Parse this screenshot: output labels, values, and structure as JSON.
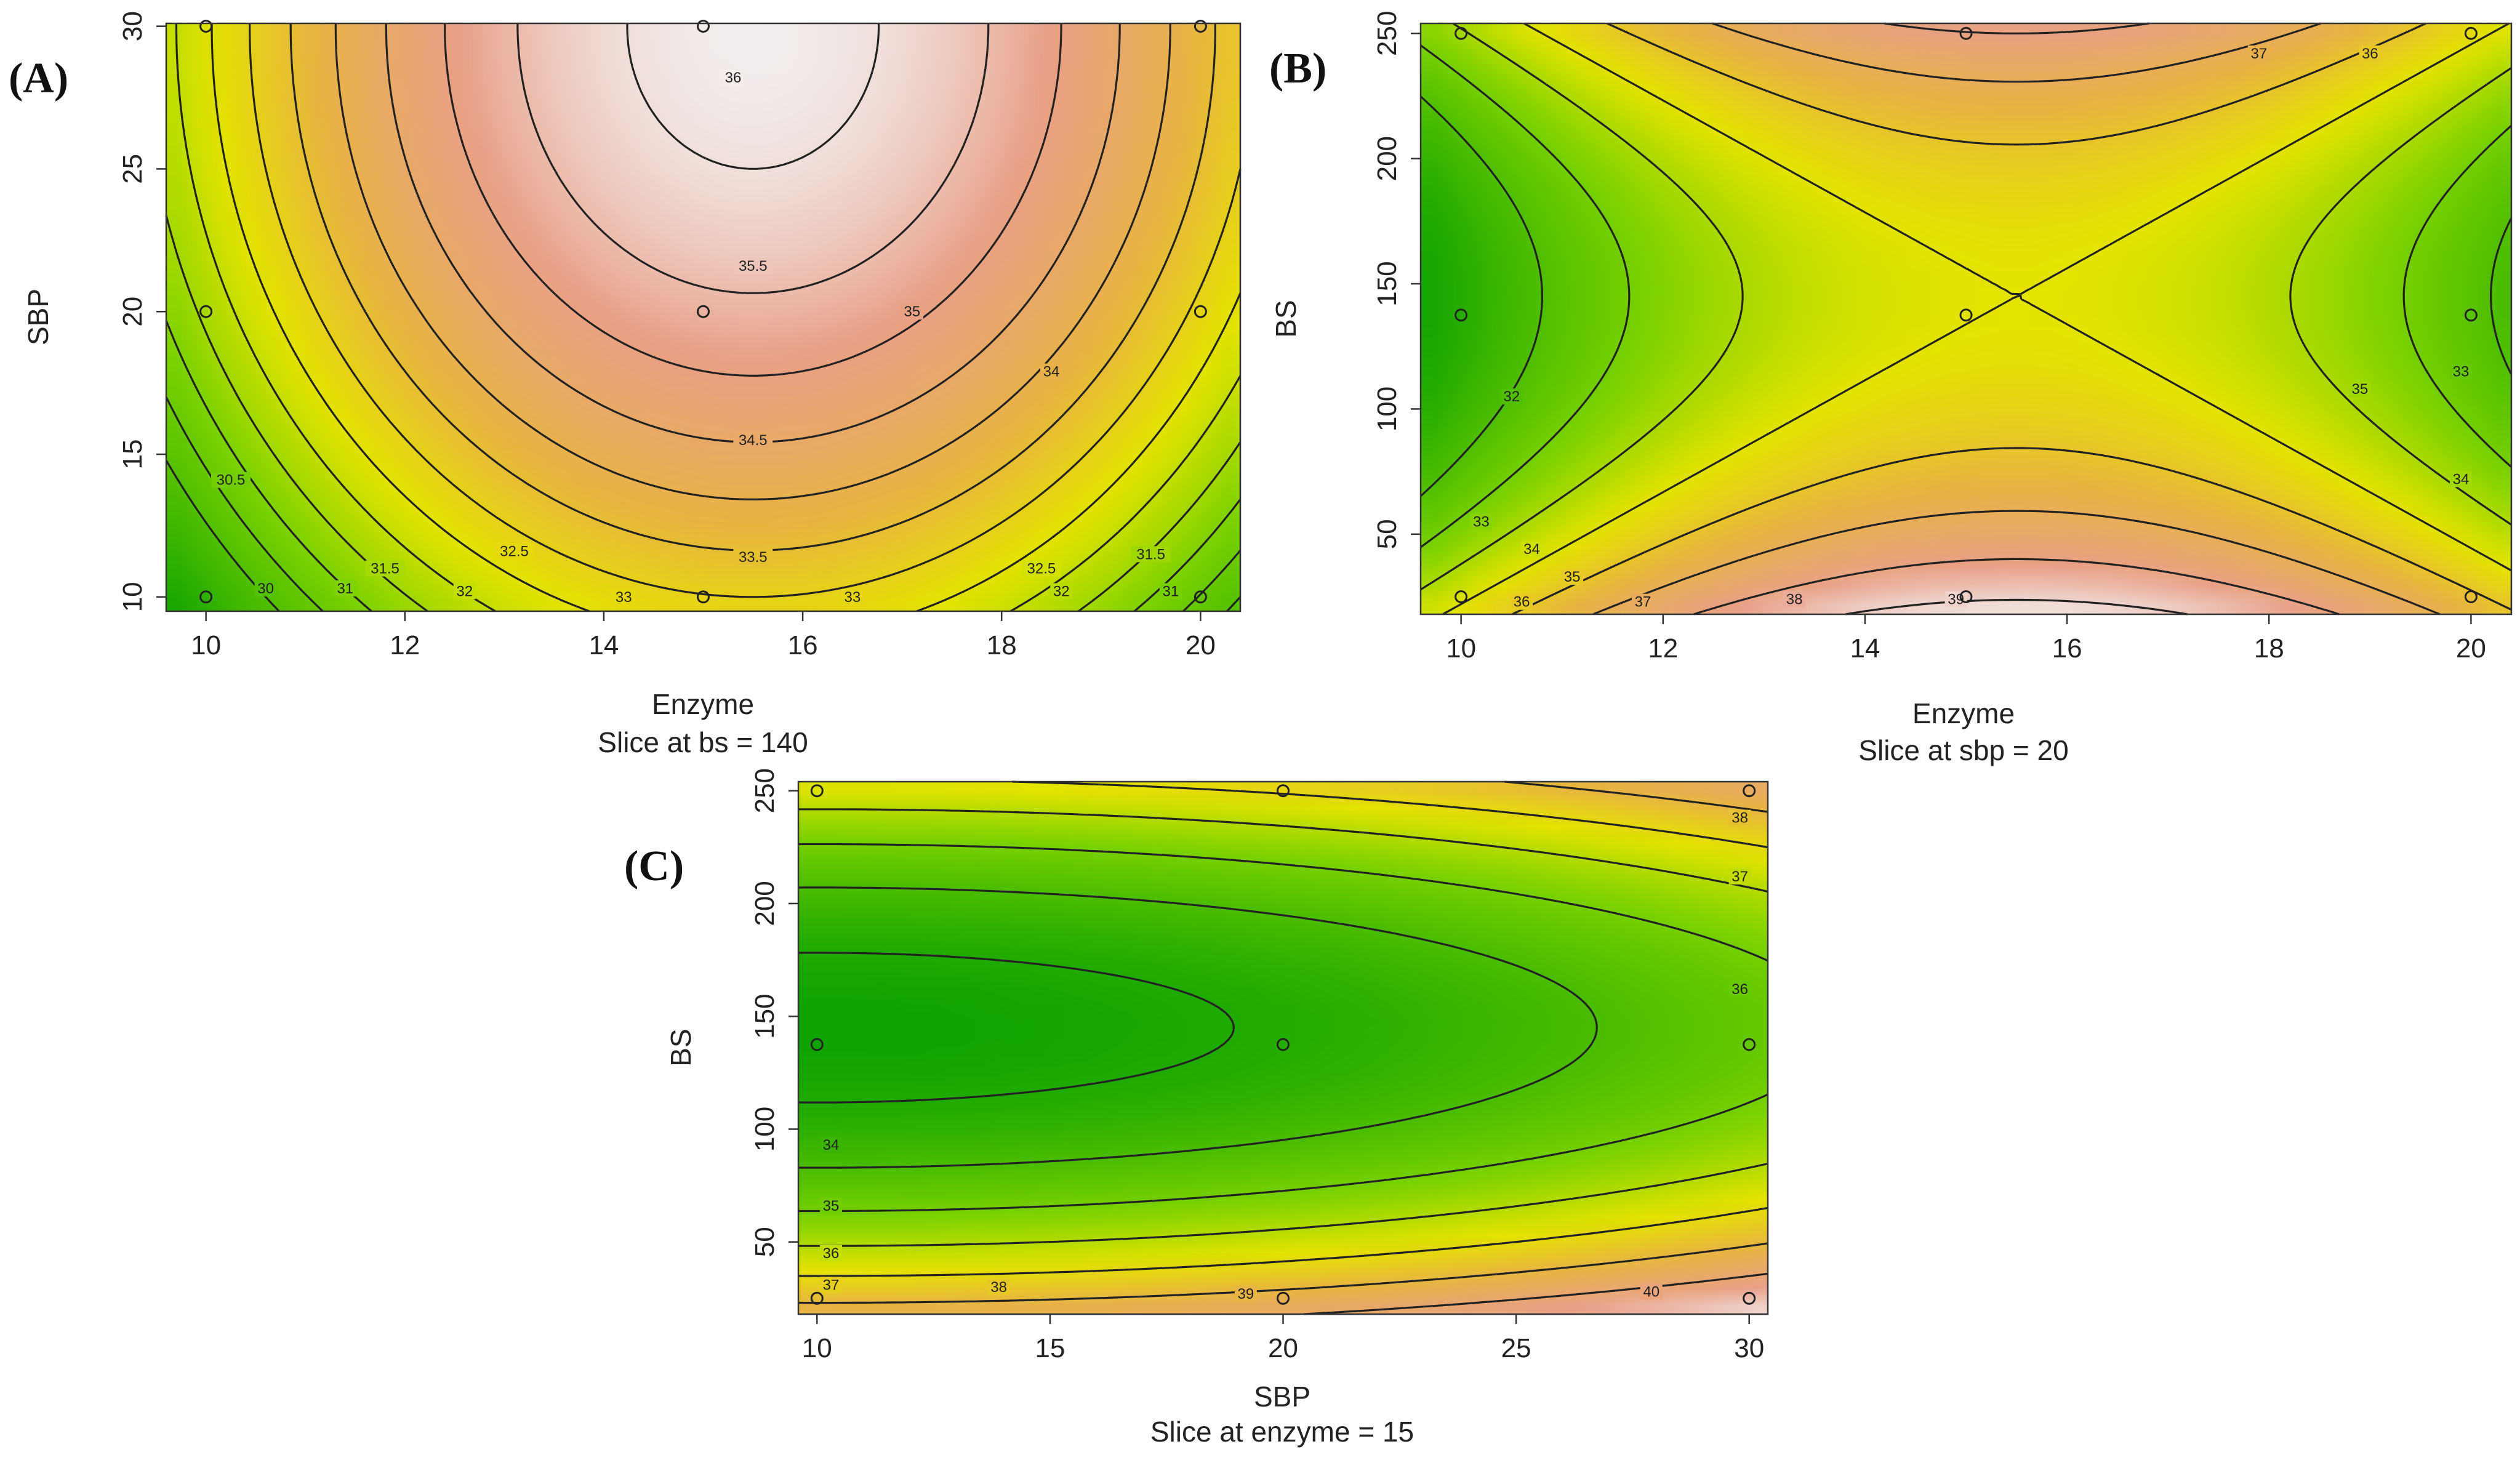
{
  "chart_data": [
    {
      "id": "A",
      "type": "heatmap",
      "panel_label": "(A)",
      "xlabel": "Enzyme",
      "ylabel": "SBP",
      "subtitle": "Slice at bs = 140",
      "xlim": [
        9.6,
        20.4
      ],
      "ylim": [
        9.5,
        30.1
      ],
      "xticks": [
        10,
        12,
        14,
        16,
        18,
        20
      ],
      "yticks": [
        10,
        15,
        20,
        25,
        30
      ],
      "xtick_labels": [
        "10",
        "12",
        "14",
        "16",
        "18",
        "20"
      ],
      "ytick_labels": [
        "10",
        "15",
        "20",
        "25",
        "30"
      ],
      "model": {
        "x0": 15.5,
        "xs": 4.9,
        "y0": 30,
        "ys": 20,
        "c0": 36.2,
        "cx": -3.0,
        "cy": -3.2
      },
      "contour_levels": [
        30,
        30.5,
        31,
        31.5,
        32,
        32.5,
        33,
        33.5,
        34,
        34.5,
        35,
        35.5,
        36
      ],
      "contour_labels": [
        {
          "text": "30",
          "x": 10.6,
          "y": 10.3
        },
        {
          "text": "30.5",
          "x": 10.25,
          "y": 14.1
        },
        {
          "text": "31",
          "x": 11.4,
          "y": 10.3
        },
        {
          "text": "31.5",
          "x": 11.8,
          "y": 11.0
        },
        {
          "text": "32",
          "x": 12.6,
          "y": 10.2
        },
        {
          "text": "32.5",
          "x": 13.1,
          "y": 11.6
        },
        {
          "text": "33",
          "x": 14.2,
          "y": 10.0
        },
        {
          "text": "33.5",
          "x": 15.5,
          "y": 11.4
        },
        {
          "text": "33",
          "x": 16.5,
          "y": 10.0
        },
        {
          "text": "34.5",
          "x": 15.5,
          "y": 15.5
        },
        {
          "text": "35.5",
          "x": 15.5,
          "y": 21.6
        },
        {
          "text": "35",
          "x": 17.1,
          "y": 20.0
        },
        {
          "text": "34",
          "x": 18.5,
          "y": 17.9
        },
        {
          "text": "32.5",
          "x": 18.4,
          "y": 11.0
        },
        {
          "text": "32",
          "x": 18.6,
          "y": 10.2
        },
        {
          "text": "31.5",
          "x": 19.5,
          "y": 11.5
        },
        {
          "text": "31",
          "x": 19.7,
          "y": 10.2
        },
        {
          "text": "36",
          "x": 15.3,
          "y": 28.2
        }
      ],
      "design_points": [
        [
          10,
          10
        ],
        [
          10,
          20
        ],
        [
          10,
          30
        ],
        [
          15,
          10
        ],
        [
          15,
          20
        ],
        [
          15,
          30
        ],
        [
          20,
          10
        ],
        [
          20,
          20
        ],
        [
          20,
          30
        ]
      ]
    },
    {
      "id": "B",
      "type": "heatmap",
      "panel_label": "(B)",
      "xlabel": "Enzyme",
      "ylabel": "BS",
      "subtitle": "Slice at sbp = 20",
      "xlim": [
        9.6,
        20.4
      ],
      "ylim": [
        18,
        254
      ],
      "xticks": [
        10,
        12,
        14,
        16,
        18,
        20
      ],
      "yticks": [
        50,
        100,
        150,
        200,
        250
      ],
      "xtick_labels": [
        "10",
        "12",
        "14",
        "16",
        "18",
        "20"
      ],
      "ytick_labels": [
        "50",
        "100",
        "150",
        "200",
        "250"
      ],
      "model": {
        "x0": 15.5,
        "xs": 5.0,
        "y0": 145,
        "ys": 115,
        "c0": 35.0,
        "cx": -3.4,
        "cy": 3.6
      },
      "contour_levels": [
        32,
        33,
        34,
        35,
        36,
        37,
        38,
        39
      ],
      "contour_labels": [
        {
          "text": "32",
          "x": 10.5,
          "y": 105
        },
        {
          "text": "33",
          "x": 10.2,
          "y": 55
        },
        {
          "text": "34",
          "x": 10.7,
          "y": 44
        },
        {
          "text": "35",
          "x": 11.1,
          "y": 33
        },
        {
          "text": "36",
          "x": 10.6,
          "y": 23
        },
        {
          "text": "37",
          "x": 11.8,
          "y": 23
        },
        {
          "text": "38",
          "x": 13.3,
          "y": 24
        },
        {
          "text": "39",
          "x": 14.9,
          "y": 24
        },
        {
          "text": "37",
          "x": 17.9,
          "y": 242
        },
        {
          "text": "36",
          "x": 19.0,
          "y": 242
        },
        {
          "text": "35",
          "x": 18.9,
          "y": 108
        },
        {
          "text": "34",
          "x": 19.9,
          "y": 72
        },
        {
          "text": "33",
          "x": 19.9,
          "y": 115
        }
      ],
      "design_points": [
        [
          10,
          25
        ],
        [
          10,
          137.5
        ],
        [
          10,
          250
        ],
        [
          15,
          25
        ],
        [
          15,
          137.5
        ],
        [
          15,
          250
        ],
        [
          20,
          25
        ],
        [
          20,
          137.5
        ],
        [
          20,
          250
        ]
      ]
    },
    {
      "id": "C",
      "type": "heatmap",
      "panel_label": "(C)",
      "xlabel": "SBP",
      "ylabel": "BS",
      "subtitle": "Slice at enzyme = 15",
      "xlim": [
        9.6,
        30.4
      ],
      "ylim": [
        18,
        254
      ],
      "xticks": [
        10,
        15,
        20,
        25,
        30
      ],
      "yticks": [
        50,
        100,
        150,
        200,
        250
      ],
      "xtick_labels": [
        "10",
        "15",
        "20",
        "25",
        "30"
      ],
      "ytick_labels": [
        "50",
        "100",
        "150",
        "200",
        "250"
      ],
      "model": {
        "x0": 10,
        "xs": 20,
        "y0": 145,
        "ys": 115,
        "c0": 33.6,
        "cx": 2.0,
        "cy": 4.8
      },
      "contour_levels": [
        34,
        35,
        36,
        37,
        38,
        39,
        40
      ],
      "contour_labels": [
        {
          "text": "34",
          "x": 10.3,
          "y": 93
        },
        {
          "text": "35",
          "x": 10.3,
          "y": 66
        },
        {
          "text": "36",
          "x": 10.3,
          "y": 45
        },
        {
          "text": "37",
          "x": 10.3,
          "y": 31
        },
        {
          "text": "38",
          "x": 13.9,
          "y": 30
        },
        {
          "text": "39",
          "x": 19.2,
          "y": 27
        },
        {
          "text": "40",
          "x": 27.9,
          "y": 28
        },
        {
          "text": "38",
          "x": 29.8,
          "y": 238
        },
        {
          "text": "37",
          "x": 29.8,
          "y": 212
        },
        {
          "text": "36",
          "x": 29.8,
          "y": 162
        }
      ],
      "design_points": [
        [
          10,
          25
        ],
        [
          10,
          137.5
        ],
        [
          10,
          250
        ],
        [
          20,
          25
        ],
        [
          20,
          137.5
        ],
        [
          20,
          250
        ],
        [
          30,
          25
        ],
        [
          30,
          137.5
        ],
        [
          30,
          250
        ]
      ]
    }
  ],
  "colors": {
    "low": "#0fa300",
    "mid_low": "#7bd200",
    "mid": "#e5e400",
    "mid_high": "#e8b540",
    "high": "#e9a088",
    "top": "#f2eeee",
    "lines": "#222222"
  }
}
